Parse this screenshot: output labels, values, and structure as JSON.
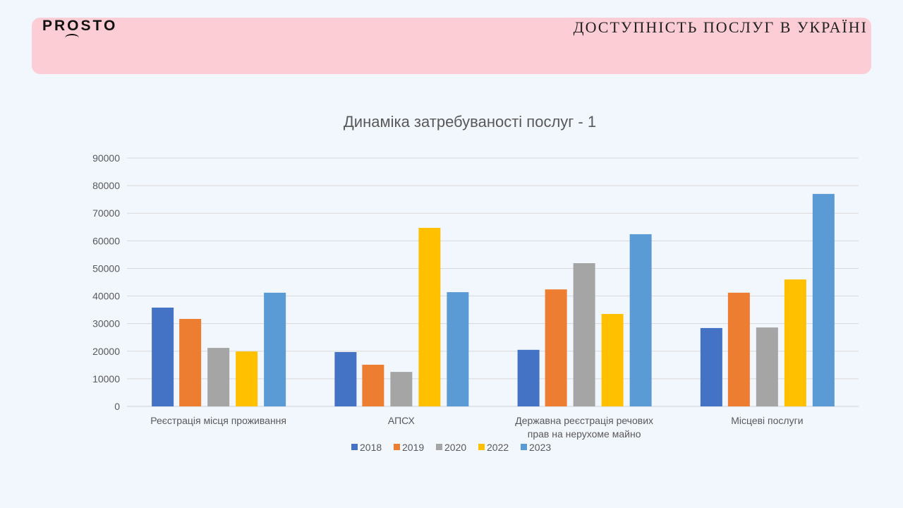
{
  "header": {
    "logo": "PROSTO",
    "title": "ДОСТУПНІСТЬ ПОСЛУГ В УКРАЇНІ"
  },
  "chart_data": {
    "type": "bar",
    "title": "Динаміка затребуваності послуг - 1",
    "categories": [
      "Реєстрація місця проживання",
      "АПСХ",
      "Державна реєстрація речових|прав на нерухоме  майно",
      "Місцеві послуги"
    ],
    "ylim": [
      0,
      90000
    ],
    "yticks": [
      0,
      10000,
      20000,
      30000,
      40000,
      50000,
      60000,
      70000,
      80000,
      90000
    ],
    "grid": true,
    "legend_position": "bottom",
    "series": [
      {
        "name": "2018",
        "color": "#4472c4",
        "values": [
          35800,
          19700,
          20500,
          28400
        ]
      },
      {
        "name": "2019",
        "color": "#ed7d31",
        "values": [
          31700,
          15100,
          42400,
          41200
        ]
      },
      {
        "name": "2020",
        "color": "#a5a5a5",
        "values": [
          21200,
          12500,
          51900,
          28600
        ]
      },
      {
        "name": "2022",
        "color": "#ffc000",
        "values": [
          19900,
          64700,
          33500,
          46000
        ]
      },
      {
        "name": "2023",
        "color": "#5b9bd5",
        "values": [
          41200,
          41400,
          62400,
          77000
        ]
      }
    ]
  }
}
